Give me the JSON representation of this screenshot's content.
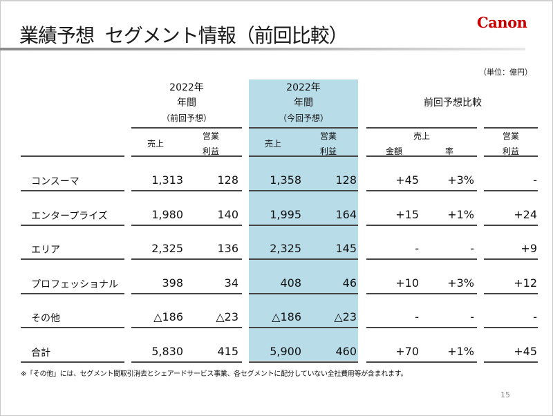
{
  "title": "業績予想  セグメント情報（前回比較）",
  "logo": "Canon",
  "unit": "（単位：億円）",
  "header": {
    "prev": {
      "year": "2022年",
      "period": "年間",
      "note": "（前回予想）",
      "sales": "売上",
      "op1": "営業",
      "op2": "利益"
    },
    "curr": {
      "year": "2022年",
      "period": "年間",
      "note": "（今回予想）",
      "sales": "売上",
      "op1": "営業",
      "op2": "利益"
    },
    "compare": {
      "title": "前回予想比較",
      "sales": "売上",
      "amount": "金額",
      "rate": "率",
      "op1": "営業",
      "op2": "利益"
    }
  },
  "rows": [
    {
      "segment": "コンスーマ",
      "prev_sales": "1,313",
      "prev_op": "128",
      "curr_sales": "1,358",
      "curr_op": "128",
      "diff_amount": "+45",
      "diff_rate": "+3%",
      "diff_op": "-"
    },
    {
      "segment": "エンタープライズ",
      "prev_sales": "1,980",
      "prev_op": "140",
      "curr_sales": "1,995",
      "curr_op": "164",
      "diff_amount": "+15",
      "diff_rate": "+1%",
      "diff_op": "+24"
    },
    {
      "segment": "エリア",
      "prev_sales": "2,325",
      "prev_op": "136",
      "curr_sales": "2,325",
      "curr_op": "145",
      "diff_amount": "-",
      "diff_rate": "-",
      "diff_op": "+9"
    },
    {
      "segment": "プロフェッショナル",
      "prev_sales": "398",
      "prev_op": "34",
      "curr_sales": "408",
      "curr_op": "46",
      "diff_amount": "+10",
      "diff_rate": "+3%",
      "diff_op": "+12"
    },
    {
      "segment": "その他",
      "prev_sales": "△186",
      "prev_op": "△23",
      "curr_sales": "△186",
      "curr_op": "△23",
      "diff_amount": "-",
      "diff_rate": "-",
      "diff_op": "-"
    },
    {
      "segment": "合計",
      "prev_sales": "5,830",
      "prev_op": "415",
      "curr_sales": "5,900",
      "curr_op": "460",
      "diff_amount": "+70",
      "diff_rate": "+1%",
      "diff_op": "+45"
    }
  ],
  "footnote": "※「その他」には、セグメント間取引消去とシェアードサービス事業、各セグメントに配分していない全社費用等が含まれます。",
  "page_number": "15",
  "colors": {
    "highlight": "#b8dce8",
    "logo": "#cc0000"
  }
}
